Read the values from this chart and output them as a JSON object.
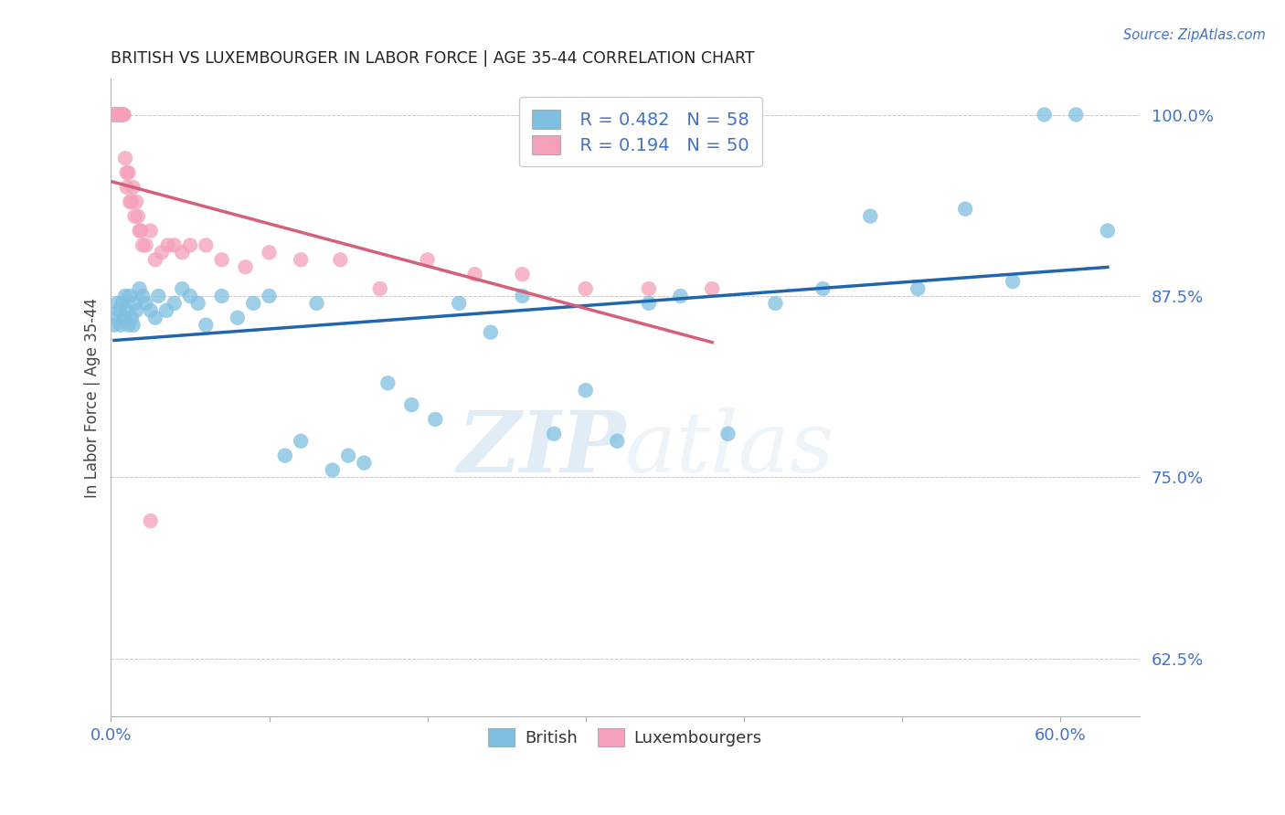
{
  "title": "BRITISH VS LUXEMBOURGER IN LABOR FORCE | AGE 35-44 CORRELATION CHART",
  "source": "Source: ZipAtlas.com",
  "ylabel": "In Labor Force | Age 35-44",
  "xlim": [
    0.0,
    0.65
  ],
  "ylim": [
    0.585,
    1.025
  ],
  "axis_color": "#4472c4",
  "grid_color": "#b0b0b0",
  "watermark_zip": "ZIP",
  "watermark_atlas": "atlas",
  "legend_british_label": "British",
  "legend_lux_label": "Luxembourgers",
  "british_R": 0.482,
  "british_N": 58,
  "lux_R": 0.194,
  "lux_N": 50,
  "british_color": "#7fbfdf",
  "lux_color": "#f4a0b8",
  "british_line_color": "#2166ac",
  "lux_line_color": "#d4607a",
  "british_x": [
    0.002,
    0.003,
    0.004,
    0.005,
    0.006,
    0.007,
    0.008,
    0.009,
    0.01,
    0.011,
    0.012,
    0.013,
    0.014,
    0.015,
    0.016,
    0.018,
    0.02,
    0.022,
    0.025,
    0.028,
    0.03,
    0.035,
    0.04,
    0.045,
    0.05,
    0.055,
    0.06,
    0.07,
    0.08,
    0.09,
    0.1,
    0.11,
    0.12,
    0.13,
    0.14,
    0.15,
    0.16,
    0.175,
    0.19,
    0.205,
    0.22,
    0.24,
    0.26,
    0.28,
    0.3,
    0.32,
    0.34,
    0.36,
    0.39,
    0.42,
    0.45,
    0.48,
    0.51,
    0.54,
    0.57,
    0.59,
    0.61,
    0.63
  ],
  "british_y": [
    0.855,
    0.86,
    0.87,
    0.865,
    0.855,
    0.87,
    0.86,
    0.875,
    0.865,
    0.855,
    0.875,
    0.86,
    0.855,
    0.87,
    0.865,
    0.88,
    0.875,
    0.87,
    0.865,
    0.86,
    0.875,
    0.865,
    0.87,
    0.88,
    0.875,
    0.87,
    0.855,
    0.875,
    0.86,
    0.87,
    0.875,
    0.765,
    0.775,
    0.87,
    0.755,
    0.765,
    0.76,
    0.815,
    0.8,
    0.79,
    0.87,
    0.85,
    0.875,
    0.78,
    0.81,
    0.775,
    0.87,
    0.875,
    0.78,
    0.87,
    0.88,
    0.93,
    0.88,
    0.935,
    0.885,
    1.0,
    1.0,
    0.92
  ],
  "lux_x": [
    0.001,
    0.002,
    0.002,
    0.003,
    0.003,
    0.004,
    0.004,
    0.005,
    0.005,
    0.006,
    0.006,
    0.007,
    0.007,
    0.008,
    0.008,
    0.009,
    0.01,
    0.01,
    0.011,
    0.012,
    0.013,
    0.014,
    0.015,
    0.016,
    0.017,
    0.018,
    0.019,
    0.02,
    0.022,
    0.025,
    0.028,
    0.032,
    0.036,
    0.04,
    0.045,
    0.05,
    0.06,
    0.07,
    0.085,
    0.1,
    0.12,
    0.145,
    0.17,
    0.2,
    0.23,
    0.26,
    0.3,
    0.34,
    0.38,
    0.025
  ],
  "lux_y": [
    1.0,
    1.0,
    1.0,
    1.0,
    1.0,
    1.0,
    1.0,
    1.0,
    1.0,
    1.0,
    1.0,
    1.0,
    1.0,
    1.0,
    1.0,
    0.97,
    0.95,
    0.96,
    0.96,
    0.94,
    0.94,
    0.95,
    0.93,
    0.94,
    0.93,
    0.92,
    0.92,
    0.91,
    0.91,
    0.92,
    0.9,
    0.905,
    0.91,
    0.91,
    0.905,
    0.91,
    0.91,
    0.9,
    0.895,
    0.905,
    0.9,
    0.9,
    0.88,
    0.9,
    0.89,
    0.89,
    0.88,
    0.88,
    0.88,
    0.72
  ]
}
